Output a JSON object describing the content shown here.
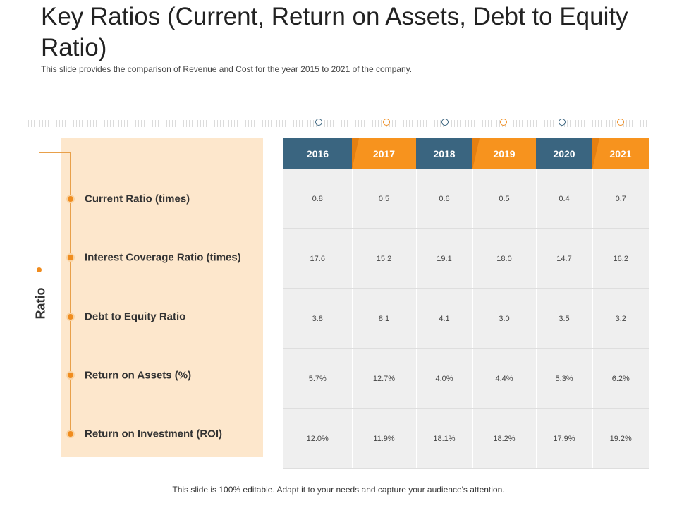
{
  "header": {
    "title": "Key Ratios (Current, Return on Assets, Debt to Equity Ratio)",
    "subtitle": "This slide provides  the comparison of Revenue  and Cost for the year 2015 to 2021 of the company."
  },
  "side_label": "Ratio",
  "years": [
    "2016",
    "2017",
    "2018",
    "2019",
    "2020",
    "2021"
  ],
  "rows": [
    {
      "label": "Current Ratio (times)",
      "values": [
        "0.8",
        "0.5",
        "0.6",
        "0.5",
        "0.4",
        "0.7"
      ]
    },
    {
      "label": "Interest Coverage Ratio (times)",
      "values": [
        "17.6",
        "15.2",
        "19.1",
        "18.0",
        "14.7",
        "16.2"
      ]
    },
    {
      "label": "Debt to Equity Ratio",
      "values": [
        "3.8",
        "8.1",
        "4.1",
        "3.0",
        "3.5",
        "3.2"
      ]
    },
    {
      "label": "Return on Assets (%)",
      "values": [
        "5.7%",
        "12.7%",
        "4.0%",
        "4.4%",
        "5.3%",
        "6.2%"
      ]
    },
    {
      "label": "Return on Investment (ROI)",
      "values": [
        "12.0%",
        "11.9%",
        "18.1%",
        "18.2%",
        "17.9%",
        "19.2%"
      ]
    }
  ],
  "footer": "This slide is 100% editable. Adapt it to your needs and capture your audience's attention.",
  "colors": {
    "blue": "#3a6580",
    "orange": "#f7931e",
    "panel": "#fde7cc"
  }
}
